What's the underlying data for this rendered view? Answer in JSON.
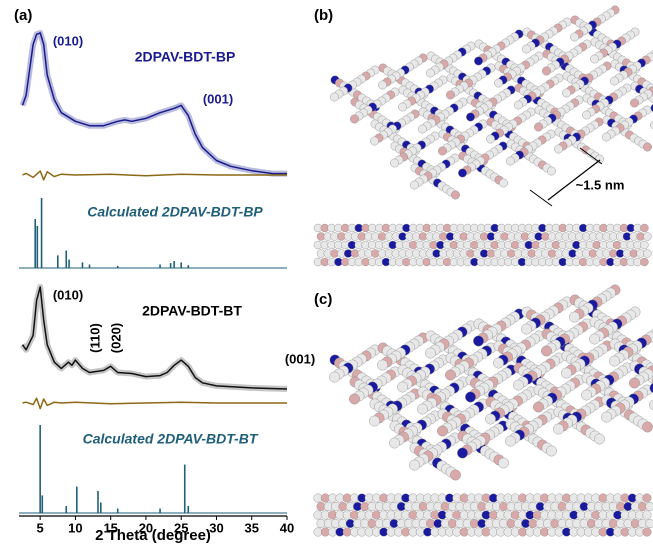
{
  "panel_labels": [
    "(a)",
    "(b)",
    "(c)"
  ],
  "scale_label": "~1.5 nm",
  "chart_data": [
    {
      "type": "line",
      "title": "2DPAV-BDT-BP",
      "annotations": [
        "(010)",
        "(001)"
      ],
      "xlim": [
        2,
        40
      ],
      "ylim": [
        0,
        100
      ],
      "x": [
        2.5,
        3,
        4,
        4.5,
        5,
        5.5,
        6,
        7,
        8,
        10,
        12,
        14,
        16,
        17,
        18,
        20,
        22,
        24,
        25,
        26,
        27,
        28,
        30,
        32,
        35,
        38,
        40
      ],
      "series": [
        {
          "color": "#1a1a8c",
          "values": [
            48,
            55,
            90,
            97,
            98,
            90,
            69,
            52,
            43,
            37,
            34,
            34,
            37,
            38,
            37,
            39,
            43,
            46,
            48,
            41,
            28,
            19,
            10,
            6,
            3,
            1,
            1
          ]
        }
      ]
    },
    {
      "type": "line",
      "xlim": [
        2,
        40
      ],
      "ylim": [
        -10,
        10
      ],
      "x": [
        2.5,
        3,
        4,
        5,
        5.5,
        6,
        7,
        8,
        10,
        15,
        20,
        25,
        30,
        40
      ],
      "series": [
        {
          "color": "#8b6914",
          "values": [
            0,
            2,
            -3,
            5,
            -6,
            4,
            -2,
            1,
            0,
            1,
            -1,
            1,
            0,
            0
          ]
        }
      ]
    },
    {
      "type": "stick",
      "title": "Calculated 2DPAV-BDT-BP",
      "xlim": [
        2,
        40
      ],
      "ylim": [
        0,
        100
      ],
      "x": [
        4.3,
        4.6,
        5.2,
        7.5,
        8.7,
        9.1,
        11,
        12,
        16,
        22,
        23.5,
        24,
        25,
        26
      ],
      "color": "#1f5f7a",
      "values": [
        70,
        60,
        100,
        18,
        25,
        12,
        8,
        5,
        3,
        5,
        7,
        10,
        8,
        4
      ]
    },
    {
      "type": "line",
      "title": "2DPAV-BDT-BT",
      "annotations": [
        "(010)",
        "(110)",
        "(020)",
        "(001)"
      ],
      "xlim": [
        2,
        40
      ],
      "ylim": [
        0,
        100
      ],
      "x": [
        2.5,
        3,
        4,
        4.5,
        5,
        5.5,
        6,
        7,
        8,
        9,
        9.5,
        10,
        11,
        12,
        14,
        15,
        16,
        18,
        20,
        22,
        23,
        24,
        25,
        26,
        27,
        28,
        30,
        35,
        40
      ],
      "series": [
        {
          "color": "#111111",
          "values": [
            44,
            39,
            53,
            87,
            100,
            68,
            44,
            27,
            21,
            27,
            24,
            29,
            21,
            17,
            19,
            23,
            17,
            16,
            13,
            14,
            17,
            24,
            29,
            23,
            12,
            7,
            4,
            2,
            1
          ]
        }
      ]
    },
    {
      "type": "line",
      "xlim": [
        2,
        40
      ],
      "ylim": [
        -10,
        10
      ],
      "x": [
        2.5,
        3,
        4,
        4.5,
        5,
        5.5,
        6,
        7,
        8,
        10,
        15,
        20,
        25,
        30,
        40
      ],
      "series": [
        {
          "color": "#8b6914",
          "values": [
            0,
            1,
            -2,
            6,
            -7,
            5,
            -3,
            1,
            0,
            1,
            -1,
            0,
            1,
            0,
            0
          ]
        }
      ]
    },
    {
      "type": "stick",
      "title": "Calculated 2DPAV-BDT-BT",
      "xlim": [
        2,
        40
      ],
      "ylim": [
        0,
        100
      ],
      "x": [
        5.0,
        5.3,
        8.7,
        10.2,
        13.2,
        13.6,
        16,
        22,
        25.5,
        26
      ],
      "color": "#1f5f7a",
      "values": [
        100,
        20,
        8,
        30,
        25,
        12,
        5,
        5,
        55,
        8
      ],
      "xticks": [
        5,
        10,
        15,
        20,
        25,
        30,
        35,
        40
      ],
      "xlabel": "2 Theta (degree)"
    }
  ]
}
